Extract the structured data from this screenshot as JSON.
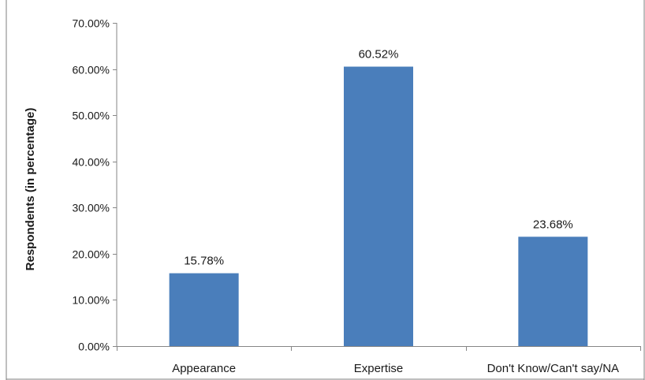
{
  "chart_data": {
    "type": "bar",
    "title": "",
    "xlabel": "",
    "ylabel": "Respondents (in percentage)",
    "categories": [
      "Appearance",
      "Expertise",
      "Don't Know/Can't say/NA"
    ],
    "values": [
      15.78,
      60.52,
      23.68
    ],
    "data_labels": [
      "15.78%",
      "60.52%",
      "23.68%"
    ],
    "ylim": [
      0,
      70
    ],
    "yticks": [
      0,
      10,
      20,
      30,
      40,
      50,
      60,
      70
    ],
    "ytick_labels": [
      "0.00%",
      "10.00%",
      "20.00%",
      "30.00%",
      "40.00%",
      "50.00%",
      "60.00%",
      "70.00%"
    ],
    "bar_color": "#4a7ebb",
    "grid": false,
    "legend": "none"
  }
}
